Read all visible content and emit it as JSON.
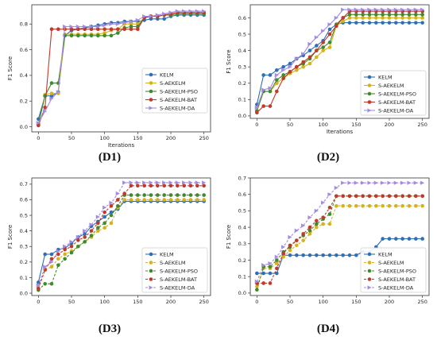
{
  "colors": {
    "KELM": "#2e6fb5",
    "S-AEKELM": "#d6b31a",
    "S-AEKELM-PSO": "#3f8a2c",
    "S-AEKELM-BAT": "#c0392b",
    "S-AEKELM-DA": "#a58be0"
  },
  "chart_data": [
    {
      "type": "line",
      "caption": "(D1)",
      "xlabel": "Iterations",
      "ylabel": "F1 Score",
      "xlim": [
        -10,
        260
      ],
      "ylim": [
        -0.04,
        0.95
      ],
      "xticks": [
        0,
        50,
        100,
        150,
        200,
        250
      ],
      "yticks": [
        0.0,
        0.2,
        0.4,
        0.6,
        0.8
      ],
      "ytick_labels": [
        "0.0",
        "0.2",
        "0.4",
        "0.6",
        "0.8"
      ],
      "legend_position": "middle-right",
      "x": [
        0,
        10,
        20,
        30,
        40,
        50,
        60,
        70,
        80,
        90,
        100,
        110,
        120,
        130,
        140,
        150,
        160,
        170,
        180,
        190,
        200,
        210,
        220,
        230,
        240,
        250
      ],
      "series": [
        {
          "name": "KELM",
          "values": [
            0.06,
            0.24,
            0.24,
            0.27,
            0.71,
            0.75,
            0.76,
            0.77,
            0.78,
            0.79,
            0.8,
            0.81,
            0.81,
            0.82,
            0.82,
            0.82,
            0.83,
            0.84,
            0.84,
            0.84,
            0.86,
            0.87,
            0.87,
            0.87,
            0.87,
            0.87
          ]
        },
        {
          "name": "S-AEKELM",
          "values": [
            0.01,
            0.25,
            0.26,
            0.26,
            0.72,
            0.72,
            0.72,
            0.72,
            0.72,
            0.72,
            0.73,
            0.75,
            0.76,
            0.8,
            0.8,
            0.8,
            0.85,
            0.86,
            0.86,
            0.87,
            0.87,
            0.88,
            0.88,
            0.88,
            0.88,
            0.88
          ]
        },
        {
          "name": "S-AEKELM-PSO",
          "values": [
            0.02,
            0.24,
            0.34,
            0.34,
            0.71,
            0.71,
            0.71,
            0.71,
            0.71,
            0.71,
            0.71,
            0.71,
            0.73,
            0.77,
            0.78,
            0.78,
            0.85,
            0.86,
            0.86,
            0.87,
            0.87,
            0.88,
            0.88,
            0.88,
            0.88,
            0.88
          ]
        },
        {
          "name": "S-AEKELM-BAT",
          "values": [
            0.01,
            0.15,
            0.76,
            0.76,
            0.76,
            0.76,
            0.76,
            0.76,
            0.76,
            0.76,
            0.76,
            0.76,
            0.76,
            0.76,
            0.76,
            0.76,
            0.85,
            0.86,
            0.86,
            0.87,
            0.88,
            0.89,
            0.89,
            0.89,
            0.89,
            0.89
          ]
        },
        {
          "name": "S-AEKELM-DA",
          "values": [
            0.03,
            0.12,
            0.22,
            0.27,
            0.78,
            0.78,
            0.78,
            0.78,
            0.78,
            0.78,
            0.79,
            0.8,
            0.8,
            0.81,
            0.82,
            0.83,
            0.86,
            0.86,
            0.87,
            0.88,
            0.89,
            0.9,
            0.9,
            0.9,
            0.9,
            0.9
          ]
        }
      ]
    },
    {
      "type": "line",
      "caption": "(D2)",
      "xlabel": "Iterations",
      "ylabel": "F1 Score",
      "xlim": [
        -10,
        260
      ],
      "ylim": [
        -0.015,
        0.68
      ],
      "xticks": [
        0,
        50,
        100,
        150,
        200,
        250
      ],
      "yticks": [
        0.0,
        0.1,
        0.2,
        0.3,
        0.4,
        0.5,
        0.6
      ],
      "ytick_labels": [
        "0.0",
        "0.1",
        "0.2",
        "0.3",
        "0.4",
        "0.5",
        "0.6"
      ],
      "legend_position": "lower-right",
      "x": [
        0,
        10,
        20,
        30,
        40,
        50,
        60,
        70,
        80,
        90,
        100,
        110,
        120,
        130,
        140,
        150,
        160,
        170,
        180,
        190,
        200,
        210,
        220,
        230,
        240,
        250
      ],
      "series": [
        {
          "name": "KELM",
          "values": [
            0.07,
            0.25,
            0.25,
            0.28,
            0.3,
            0.32,
            0.35,
            0.37,
            0.4,
            0.43,
            0.46,
            0.53,
            0.56,
            0.57,
            0.57,
            0.57,
            0.57,
            0.57,
            0.57,
            0.57,
            0.57,
            0.57,
            0.57,
            0.57,
            0.57,
            0.57
          ]
        },
        {
          "name": "S-AEKELM",
          "values": [
            0.03,
            0.15,
            0.15,
            0.2,
            0.23,
            0.26,
            0.28,
            0.3,
            0.32,
            0.36,
            0.4,
            0.42,
            0.55,
            0.58,
            0.6,
            0.6,
            0.6,
            0.6,
            0.6,
            0.6,
            0.6,
            0.6,
            0.6,
            0.6,
            0.6,
            0.6
          ]
        },
        {
          "name": "S-AEKELM-PSO",
          "values": [
            0.03,
            0.15,
            0.15,
            0.22,
            0.25,
            0.27,
            0.3,
            0.32,
            0.35,
            0.4,
            0.42,
            0.45,
            0.56,
            0.6,
            0.62,
            0.62,
            0.62,
            0.62,
            0.62,
            0.62,
            0.62,
            0.62,
            0.62,
            0.62,
            0.62,
            0.62
          ]
        },
        {
          "name": "S-AEKELM-BAT",
          "values": [
            0.02,
            0.06,
            0.06,
            0.15,
            0.23,
            0.27,
            0.3,
            0.33,
            0.36,
            0.4,
            0.45,
            0.5,
            0.55,
            0.6,
            0.64,
            0.64,
            0.64,
            0.64,
            0.64,
            0.64,
            0.64,
            0.64,
            0.64,
            0.64,
            0.64,
            0.64
          ]
        },
        {
          "name": "S-AEKELM-DA",
          "values": [
            0.05,
            0.16,
            0.17,
            0.25,
            0.28,
            0.3,
            0.35,
            0.38,
            0.44,
            0.48,
            0.52,
            0.56,
            0.6,
            0.65,
            0.65,
            0.65,
            0.65,
            0.65,
            0.65,
            0.65,
            0.65,
            0.65,
            0.65,
            0.65,
            0.65,
            0.65
          ]
        }
      ]
    },
    {
      "type": "line",
      "caption": "(D3)",
      "xlabel": "",
      "ylabel": "F1 Score",
      "xlim": [
        -10,
        260
      ],
      "ylim": [
        -0.015,
        0.74
      ],
      "xticks": [
        0,
        50,
        100,
        150,
        200,
        250
      ],
      "yticks": [
        0.0,
        0.1,
        0.2,
        0.3,
        0.4,
        0.5,
        0.6,
        0.7
      ],
      "ytick_labels": [
        "0.0",
        "0.1",
        "0.2",
        "0.3",
        "0.4",
        "0.5",
        "0.6",
        "0.7"
      ],
      "legend_position": "lower-right",
      "x": [
        0,
        10,
        20,
        30,
        40,
        50,
        60,
        70,
        80,
        90,
        100,
        110,
        120,
        130,
        140,
        150,
        160,
        170,
        180,
        190,
        200,
        210,
        220,
        230,
        240,
        250
      ],
      "series": [
        {
          "name": "KELM",
          "values": [
            0.07,
            0.25,
            0.25,
            0.28,
            0.29,
            0.32,
            0.36,
            0.38,
            0.43,
            0.46,
            0.49,
            0.52,
            0.54,
            0.59,
            0.59,
            0.59,
            0.59,
            0.59,
            0.59,
            0.59,
            0.59,
            0.59,
            0.59,
            0.59,
            0.59,
            0.59
          ]
        },
        {
          "name": "S-AEKELM",
          "values": [
            0.03,
            0.15,
            0.17,
            0.22,
            0.25,
            0.27,
            0.3,
            0.33,
            0.36,
            0.4,
            0.42,
            0.45,
            0.55,
            0.6,
            0.6,
            0.6,
            0.6,
            0.6,
            0.6,
            0.6,
            0.6,
            0.6,
            0.6,
            0.6,
            0.6,
            0.6
          ]
        },
        {
          "name": "S-AEKELM-PSO",
          "values": [
            0.02,
            0.06,
            0.06,
            0.18,
            0.22,
            0.26,
            0.3,
            0.33,
            0.37,
            0.42,
            0.45,
            0.5,
            0.56,
            0.63,
            0.63,
            0.63,
            0.63,
            0.63,
            0.63,
            0.63,
            0.63,
            0.63,
            0.63,
            0.63,
            0.63,
            0.63
          ]
        },
        {
          "name": "S-AEKELM-BAT",
          "values": [
            0.03,
            0.15,
            0.22,
            0.25,
            0.28,
            0.3,
            0.34,
            0.36,
            0.4,
            0.45,
            0.52,
            0.56,
            0.6,
            0.64,
            0.69,
            0.69,
            0.69,
            0.69,
            0.69,
            0.69,
            0.69,
            0.69,
            0.69,
            0.69,
            0.69,
            0.69
          ]
        },
        {
          "name": "S-AEKELM-DA",
          "values": [
            0.05,
            0.17,
            0.2,
            0.27,
            0.3,
            0.33,
            0.36,
            0.4,
            0.44,
            0.49,
            0.55,
            0.58,
            0.64,
            0.71,
            0.71,
            0.71,
            0.71,
            0.71,
            0.71,
            0.71,
            0.71,
            0.71,
            0.71,
            0.71,
            0.71,
            0.71
          ]
        }
      ]
    },
    {
      "type": "line",
      "caption": "(D4)",
      "xlabel": "",
      "ylabel": "F1 Score",
      "xlim": [
        -10,
        260
      ],
      "ylim": [
        -0.015,
        0.7
      ],
      "xticks": [
        0,
        50,
        100,
        150,
        200,
        250
      ],
      "yticks": [
        0.0,
        0.1,
        0.2,
        0.3,
        0.4,
        0.5,
        0.6,
        0.7
      ],
      "ytick_labels": [
        "0.0",
        "0.1",
        "0.2",
        "0.3",
        "0.4",
        "0.5",
        "0.6",
        "0.7"
      ],
      "legend_position": "lower-right",
      "x": [
        0,
        10,
        20,
        30,
        40,
        50,
        60,
        70,
        80,
        90,
        100,
        110,
        120,
        130,
        140,
        150,
        160,
        170,
        180,
        190,
        200,
        210,
        220,
        230,
        240,
        250
      ],
      "series": [
        {
          "name": "KELM",
          "values": [
            0.12,
            0.12,
            0.12,
            0.12,
            0.23,
            0.23,
            0.23,
            0.23,
            0.23,
            0.23,
            0.23,
            0.23,
            0.23,
            0.23,
            0.23,
            0.23,
            0.25,
            0.25,
            0.28,
            0.33,
            0.33,
            0.33,
            0.33,
            0.33,
            0.33,
            0.33
          ]
        },
        {
          "name": "S-AEKELM",
          "values": [
            0.04,
            0.15,
            0.15,
            0.18,
            0.22,
            0.26,
            0.29,
            0.32,
            0.36,
            0.4,
            0.42,
            0.42,
            0.53,
            0.53,
            0.53,
            0.53,
            0.53,
            0.53,
            0.53,
            0.53,
            0.53,
            0.53,
            0.53,
            0.53,
            0.53,
            0.53
          ]
        },
        {
          "name": "S-AEKELM-PSO",
          "values": [
            0.02,
            0.16,
            0.16,
            0.2,
            0.25,
            0.28,
            0.32,
            0.35,
            0.38,
            0.42,
            0.45,
            0.48,
            0.59,
            0.59,
            0.59,
            0.59,
            0.59,
            0.59,
            0.59,
            0.59,
            0.59,
            0.59,
            0.59,
            0.59,
            0.59,
            0.59
          ]
        },
        {
          "name": "S-AEKELM-BAT",
          "values": [
            0.06,
            0.06,
            0.06,
            0.15,
            0.24,
            0.29,
            0.32,
            0.36,
            0.4,
            0.44,
            0.46,
            0.52,
            0.59,
            0.59,
            0.59,
            0.59,
            0.59,
            0.59,
            0.59,
            0.59,
            0.59,
            0.59,
            0.59,
            0.59,
            0.59,
            0.59
          ]
        },
        {
          "name": "S-AEKELM-DA",
          "values": [
            0.07,
            0.17,
            0.18,
            0.22,
            0.28,
            0.34,
            0.38,
            0.41,
            0.46,
            0.5,
            0.55,
            0.6,
            0.64,
            0.67,
            0.67,
            0.67,
            0.67,
            0.67,
            0.67,
            0.67,
            0.67,
            0.67,
            0.67,
            0.67,
            0.67,
            0.67
          ]
        }
      ]
    }
  ]
}
